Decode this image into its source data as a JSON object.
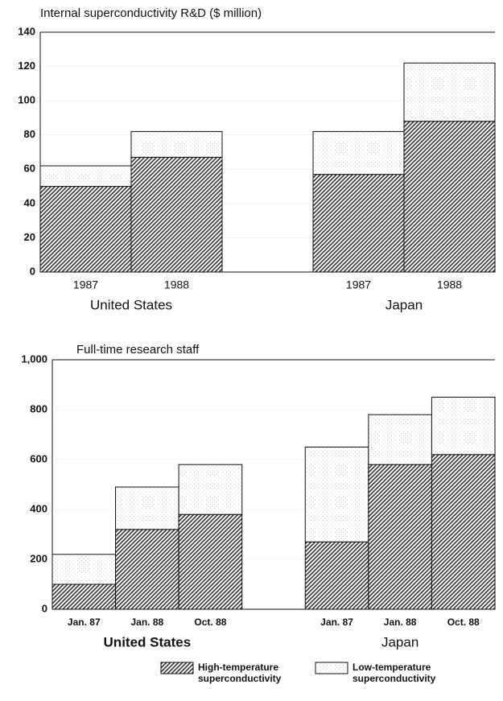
{
  "chart_data": [
    {
      "type": "bar",
      "stacked": true,
      "title": "Internal superconductivity R&D ($ million)",
      "categories": [
        "1987",
        "1988",
        null,
        "1987",
        "1988"
      ],
      "group_labels": [
        "United States",
        "Japan"
      ],
      "series": [
        {
          "color": "#333333",
          "values": [
            50,
            67,
            null,
            57,
            88
          ]
        },
        {
          "color": "#cccccc",
          "values": [
            12,
            15,
            null,
            25,
            34
          ]
        }
      ],
      "ylim": [
        0,
        140
      ],
      "yticks": [
        0,
        20,
        40,
        60,
        80,
        100,
        120,
        140
      ],
      "grid": true
    },
    {
      "type": "bar",
      "stacked": true,
      "title": "Full-time research staff",
      "categories": [
        "Jan. 87",
        "Jan. 88",
        "Oct. 88",
        null,
        "Jan. 87",
        "Jan. 88",
        "Oct. 88"
      ],
      "group_labels": [
        "United States",
        "Japan"
      ],
      "series": [
        {
          "name": "High-temperature superconductivity",
          "color": "#333333",
          "values": [
            100,
            320,
            380,
            null,
            270,
            580,
            620
          ]
        },
        {
          "name": "Low-temperature superconductivity",
          "color": "#cccccc",
          "values": [
            120,
            170,
            200,
            null,
            380,
            200,
            230
          ]
        }
      ],
      "ylim": [
        0,
        1000
      ],
      "yticks": [
        0,
        200,
        400,
        600,
        800,
        {
          "value": 1000,
          "label": "1,000"
        }
      ],
      "grid": true
    }
  ]
}
